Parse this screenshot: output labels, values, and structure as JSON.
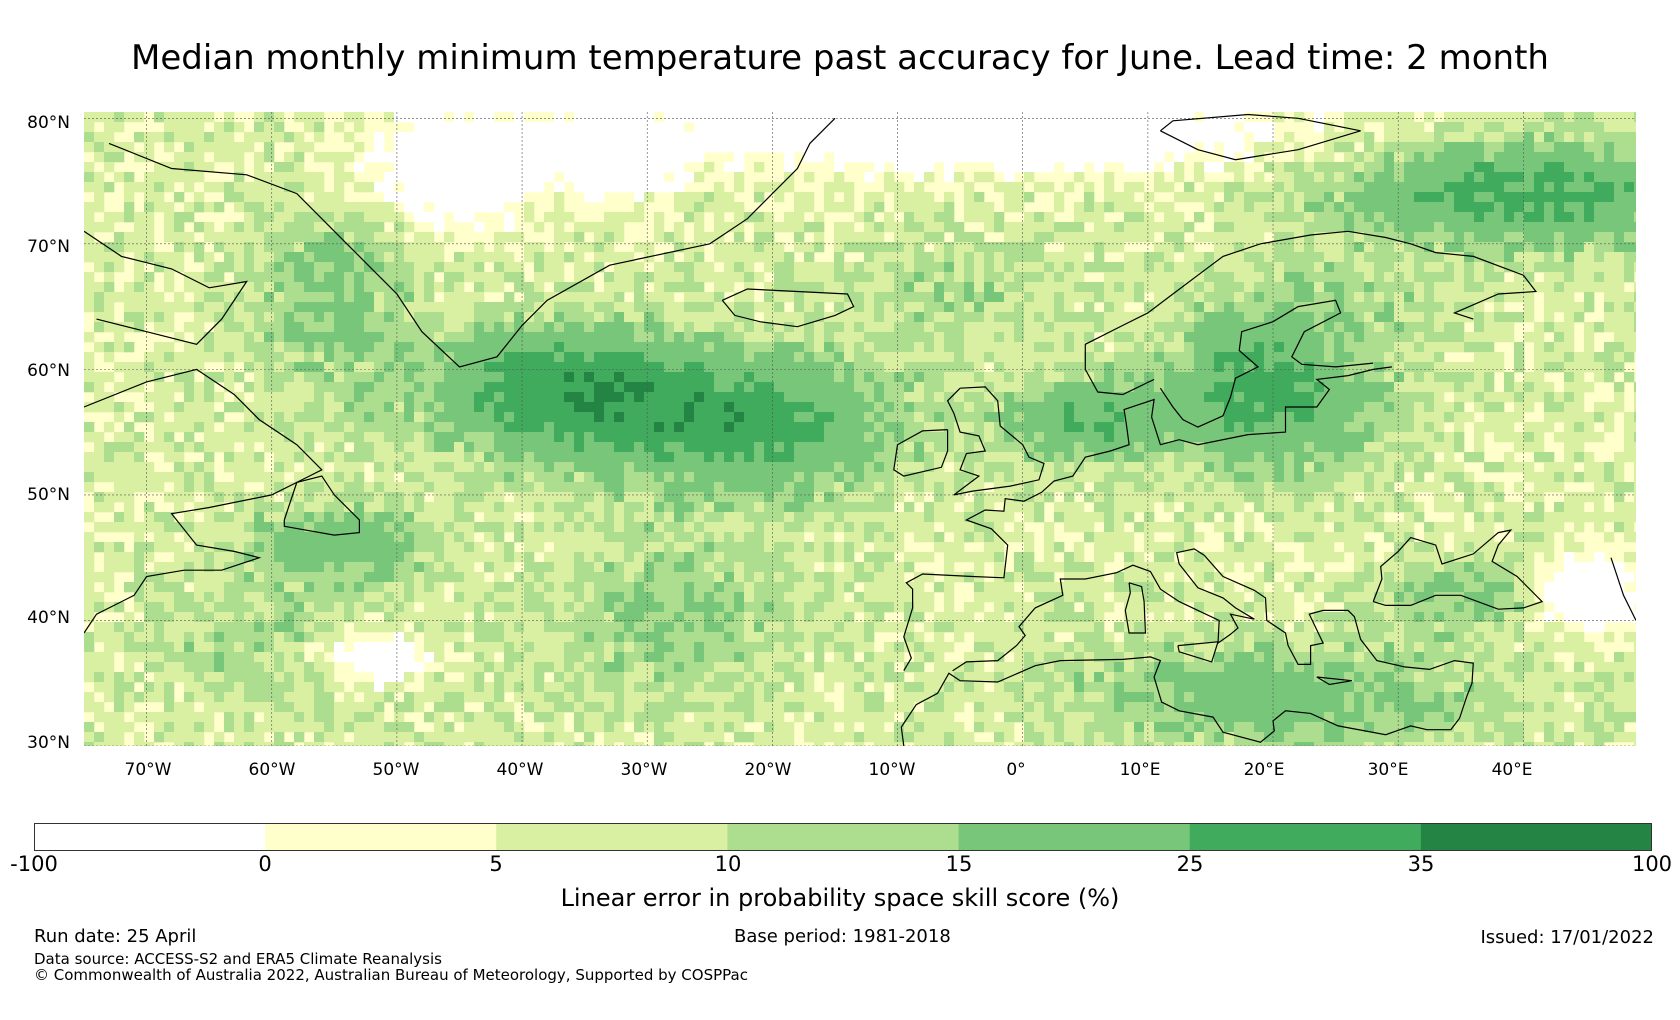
{
  "title": "Median monthly minimum temperature past accuracy for June. Lead time: 2 month",
  "map": {
    "lat_labels": [
      "80°N",
      "70°N",
      "60°N",
      "50°N",
      "40°N",
      "30°N"
    ],
    "lon_labels": [
      "70°W",
      "60°W",
      "50°W",
      "40°W",
      "30°W",
      "20°W",
      "10°W",
      "0°",
      "10°E",
      "20°E",
      "30°E",
      "40°E"
    ]
  },
  "colorbar": {
    "ticks": [
      "-100",
      "0",
      "5",
      "10",
      "15",
      "25",
      "35",
      "100"
    ],
    "colors": [
      "#ffffff",
      "#ffffcc",
      "#d9f0a3",
      "#addd8e",
      "#78c679",
      "#41ab5d",
      "#238443"
    ],
    "label": "Linear error in probability space skill score (%)"
  },
  "footer": {
    "run_date": "Run date: 25 April",
    "base_period": "Base period: 1981-2018",
    "issued": "Issued: 17/01/2022",
    "data_source": "Data source: ACCESS-S2 and ERA5 Climate Reanalysis",
    "copyright": "© Commonwealth of Australia 2022, Australian Bureau of Meteorology, Supported by COSPPac"
  }
}
